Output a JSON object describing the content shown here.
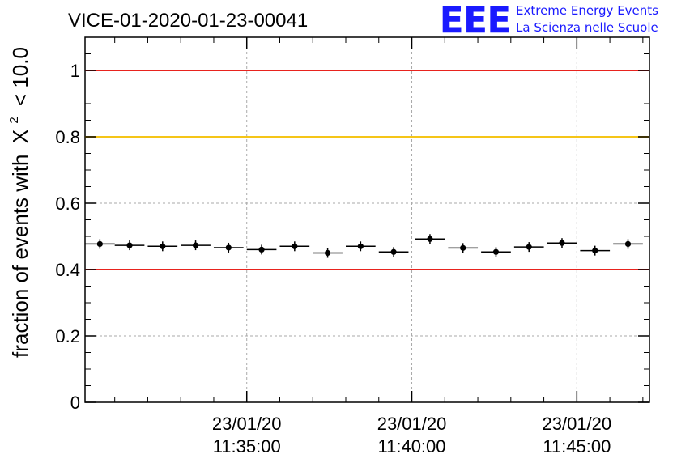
{
  "chart_data": {
    "type": "scatter",
    "title": "VICE-01-2020-01-23-00041",
    "ylabel_prefix": "fraction of events with",
    "ylabel_symbol": "X",
    "ylabel_superscript": "2",
    "ylabel_suffix": "< 10.0",
    "ylim": [
      0,
      1.1
    ],
    "yticks": [
      "0",
      "0.2",
      "0.4",
      "0.6",
      "0.8",
      "1"
    ],
    "ytick_values": [
      0,
      0.2,
      0.4,
      0.6,
      0.8,
      1.0
    ],
    "xlim_minutes": [
      30.1,
      47.2
    ],
    "xtick_minutes": [
      35,
      40,
      45
    ],
    "xticks": [
      {
        "date": "23/01/20",
        "time": "11:35:00"
      },
      {
        "date": "23/01/20",
        "time": "11:40:00"
      },
      {
        "date": "23/01/20",
        "time": "11:45:00"
      }
    ],
    "grid": true,
    "reference_lines": [
      {
        "y": 1.0,
        "color": "#e8231e"
      },
      {
        "y": 0.8,
        "color": "#f5c518"
      },
      {
        "y": 0.4,
        "color": "#e8231e"
      }
    ],
    "bin_width_minutes": 0.9,
    "points": [
      {
        "x": 30.55,
        "y": 0.477
      },
      {
        "x": 31.45,
        "y": 0.473
      },
      {
        "x": 32.45,
        "y": 0.47
      },
      {
        "x": 33.45,
        "y": 0.473
      },
      {
        "x": 34.45,
        "y": 0.466
      },
      {
        "x": 35.45,
        "y": 0.46
      },
      {
        "x": 36.45,
        "y": 0.47
      },
      {
        "x": 37.45,
        "y": 0.45
      },
      {
        "x": 38.45,
        "y": 0.47
      },
      {
        "x": 39.45,
        "y": 0.453
      },
      {
        "x": 40.55,
        "y": 0.492
      },
      {
        "x": 41.55,
        "y": 0.465
      },
      {
        "x": 42.55,
        "y": 0.453
      },
      {
        "x": 43.55,
        "y": 0.468
      },
      {
        "x": 44.55,
        "y": 0.48
      },
      {
        "x": 45.55,
        "y": 0.457
      },
      {
        "x": 46.55,
        "y": 0.477
      }
    ]
  },
  "logo": {
    "mark": "EEE",
    "line1": "Extreme Energy Events",
    "line2": "La Scienza nelle Scuole",
    "color": "#1a1aff"
  }
}
